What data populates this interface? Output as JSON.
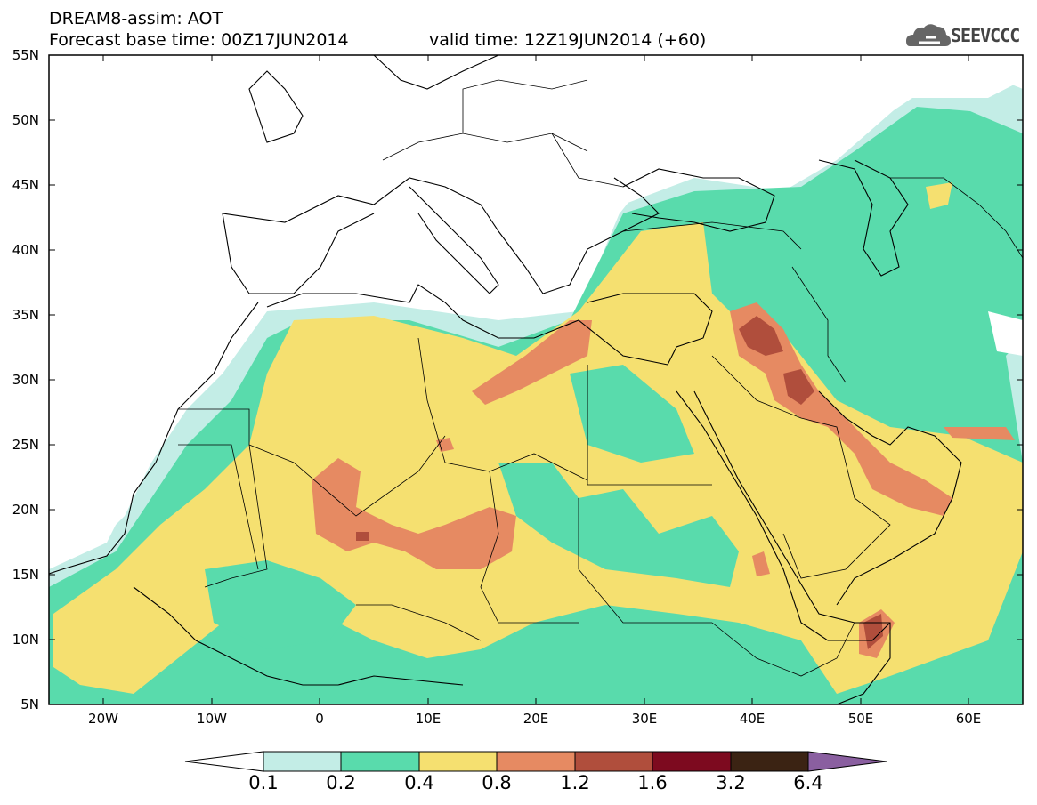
{
  "header": {
    "model": "DREAM8-assim: AOT",
    "base_time": "Forecast base time: 00Z17JUN2014",
    "valid_time": "valid time: 12Z19JUN2014 (+60)",
    "logo_text": "SEEVCCC",
    "logo_icon": "cloud-icon"
  },
  "map": {
    "lat_labels": [
      "55N",
      "50N",
      "45N",
      "40N",
      "35N",
      "30N",
      "25N",
      "20N",
      "15N",
      "10N",
      "5N"
    ],
    "lon_labels": [
      "20W",
      "10W",
      "0",
      "10E",
      "20E",
      "30E",
      "40E",
      "50E",
      "60E"
    ],
    "ocean_color": "#ffffff",
    "coast_color": "#000000"
  },
  "colorbar": {
    "labels": [
      "0.1",
      "0.2",
      "0.4",
      "0.8",
      "1.2",
      "1.6",
      "3.2",
      "6.4"
    ],
    "colors": [
      "#ffffff",
      "#c3ede6",
      "#59dbac",
      "#f5e070",
      "#e68a62",
      "#b04e3c",
      "#7d0a1f",
      "#3b2313",
      "#8a5fa0"
    ]
  }
}
